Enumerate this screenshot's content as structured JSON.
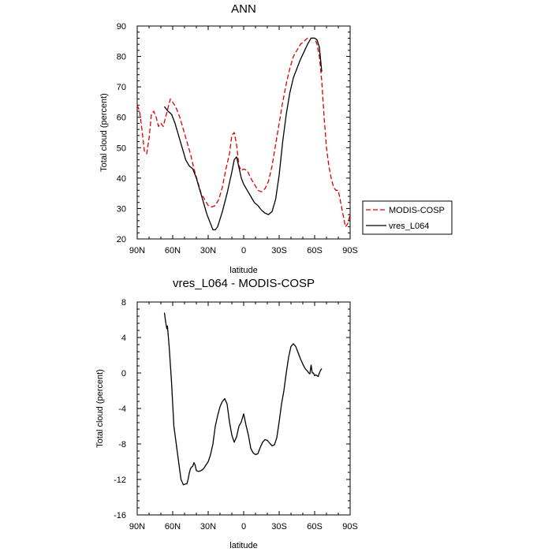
{
  "chart_data": [
    {
      "type": "line",
      "title": "ANN",
      "xlabel": "latitude",
      "ylabel": "Total cloud (percent)",
      "xlim": [
        90,
        -90
      ],
      "ylim": [
        20,
        90
      ],
      "x_ticks": [
        90,
        60,
        30,
        0,
        -30,
        -60,
        -90
      ],
      "x_tick_labels": [
        "90N",
        "60N",
        "30N",
        "0",
        "30S",
        "60S",
        "90S"
      ],
      "y_ticks": [
        20,
        30,
        40,
        50,
        60,
        70,
        80,
        90
      ],
      "y_tick_labels": [
        "20",
        "30",
        "40",
        "50",
        "60",
        "70",
        "80",
        "90"
      ],
      "legend": [
        {
          "name": "MODIS-COSP",
          "color": "#dd0000",
          "style": "dashed"
        },
        {
          "name": "vres_L064",
          "color": "#000000",
          "style": "solid"
        }
      ],
      "series": [
        {
          "name": "MODIS-COSP",
          "color": "#dd0000",
          "style": "dashed",
          "x": [
            90,
            88,
            86,
            84,
            82,
            80,
            78,
            76,
            74,
            72,
            70,
            68,
            66,
            64,
            62,
            60,
            57,
            54,
            51,
            48,
            45,
            42,
            39,
            36,
            33,
            30,
            27,
            24,
            21,
            18,
            15,
            12,
            10,
            8,
            6,
            4,
            2,
            0,
            -3,
            -6,
            -9,
            -12,
            -15,
            -18,
            -21,
            -24,
            -27,
            -30,
            -33,
            -36,
            -39,
            -42,
            -45,
            -48,
            -51,
            -54,
            -57,
            -60,
            -62,
            -64,
            -66,
            -68,
            -70,
            -72,
            -74,
            -76,
            -78,
            -80,
            -82,
            -84,
            -86,
            -88,
            -90
          ],
          "y": [
            64,
            62,
            56,
            49,
            48,
            53,
            61,
            62,
            60,
            57,
            58,
            57,
            60,
            63,
            66,
            65,
            63,
            60,
            56,
            52,
            48,
            43,
            39,
            35,
            33,
            31,
            30.5,
            31,
            33,
            37,
            43,
            48,
            54,
            55,
            51,
            44,
            42.5,
            43,
            42.5,
            40,
            38,
            36,
            35.5,
            36.5,
            39,
            44,
            51,
            58,
            65,
            71,
            76,
            80,
            82,
            84,
            85,
            86,
            86,
            86,
            84,
            80,
            72,
            60,
            50,
            44,
            40,
            37,
            36,
            36,
            32,
            28,
            24,
            25,
            28
          ]
        },
        {
          "name": "vres_L064",
          "color": "#000000",
          "style": "solid",
          "x": [
            67,
            64,
            61,
            58,
            55,
            52,
            49,
            46,
            43,
            40,
            37,
            34,
            31,
            28,
            26,
            24,
            22,
            20,
            18,
            16,
            14,
            12,
            10,
            8,
            6,
            4,
            2,
            0,
            -3,
            -6,
            -9,
            -12,
            -15,
            -18,
            -21,
            -24,
            -27,
            -30,
            -33,
            -36,
            -39,
            -42,
            -45,
            -48,
            -51,
            -54,
            -57,
            -60,
            -62,
            -64,
            -66
          ],
          "y": [
            63.5,
            62,
            61,
            58,
            54,
            50,
            46,
            44,
            43,
            40,
            36,
            32,
            28,
            25,
            23,
            23,
            24,
            26.5,
            29,
            32,
            35,
            38.5,
            42,
            46,
            47,
            43.5,
            40,
            38,
            36,
            34,
            32,
            31,
            29.5,
            28.5,
            28,
            29,
            33,
            41,
            52,
            61,
            68,
            73,
            76,
            79,
            81.5,
            84,
            86,
            86,
            85.5,
            83,
            75
          ]
        }
      ]
    },
    {
      "type": "line",
      "title": "vres_L064 - MODIS-COSP",
      "xlabel": "latitude",
      "ylabel": "Total cloud (percent)",
      "xlim": [
        90,
        -90
      ],
      "ylim": [
        -16,
        8
      ],
      "x_ticks": [
        90,
        60,
        30,
        0,
        -30,
        -60,
        -90
      ],
      "x_tick_labels": [
        "90N",
        "60N",
        "30N",
        "0",
        "30S",
        "60S",
        "90S"
      ],
      "y_ticks": [
        -16,
        -12,
        -8,
        -4,
        0,
        4,
        8
      ],
      "y_tick_labels": [
        "-16",
        "-12",
        "-8",
        "-4",
        "0",
        "4",
        "8"
      ],
      "series": [
        {
          "name": "vres_L064 - MODIS-COSP",
          "color": "#000000",
          "style": "solid",
          "x": [
            67,
            66,
            65,
            64.5,
            64,
            63,
            62,
            61,
            60,
            59,
            58,
            57,
            55,
            53,
            51,
            49,
            48,
            47,
            46,
            45,
            44,
            43,
            42,
            41,
            40,
            38,
            36,
            34,
            32,
            30,
            28,
            26,
            24,
            22,
            20,
            18,
            16,
            14,
            12,
            10,
            8,
            6,
            4,
            2,
            0,
            -2,
            -4,
            -6,
            -8,
            -10,
            -12,
            -14,
            -16,
            -18,
            -20,
            -22,
            -24,
            -26,
            -28,
            -30,
            -32,
            -34,
            -36,
            -38,
            -40,
            -42,
            -44,
            -46,
            -48,
            -50,
            -52,
            -54,
            -55,
            -56,
            -57,
            -58,
            -59,
            -60,
            -61,
            -62,
            -63,
            -64,
            -65,
            -66
          ],
          "y": [
            6.8,
            5.8,
            5,
            5.3,
            4.6,
            3,
            1,
            -1,
            -3.5,
            -6,
            -7,
            -8,
            -10,
            -12,
            -12.6,
            -12.5,
            -12.5,
            -12,
            -11.3,
            -10.8,
            -10.6,
            -10.5,
            -10.1,
            -10.4,
            -11,
            -11.1,
            -11,
            -10.8,
            -10.4,
            -10,
            -9.2,
            -8,
            -6,
            -4.8,
            -3.8,
            -3.2,
            -2.9,
            -3.5,
            -5.5,
            -7,
            -7.8,
            -7.2,
            -6,
            -5.5,
            -4.6,
            -5.9,
            -7,
            -8.5,
            -9,
            -9.2,
            -9.1,
            -8.4,
            -7.8,
            -7.5,
            -7.6,
            -7.9,
            -8.2,
            -8.1,
            -7.3,
            -5.5,
            -3.5,
            -2,
            0,
            1.8,
            3,
            3.3,
            3,
            2.3,
            1.6,
            1,
            0.5,
            0.2,
            0,
            -0.1,
            0.9,
            0,
            0,
            -0.3,
            -0.2,
            -0.3,
            -0.4,
            0,
            0.3,
            0.5
          ]
        }
      ]
    }
  ]
}
